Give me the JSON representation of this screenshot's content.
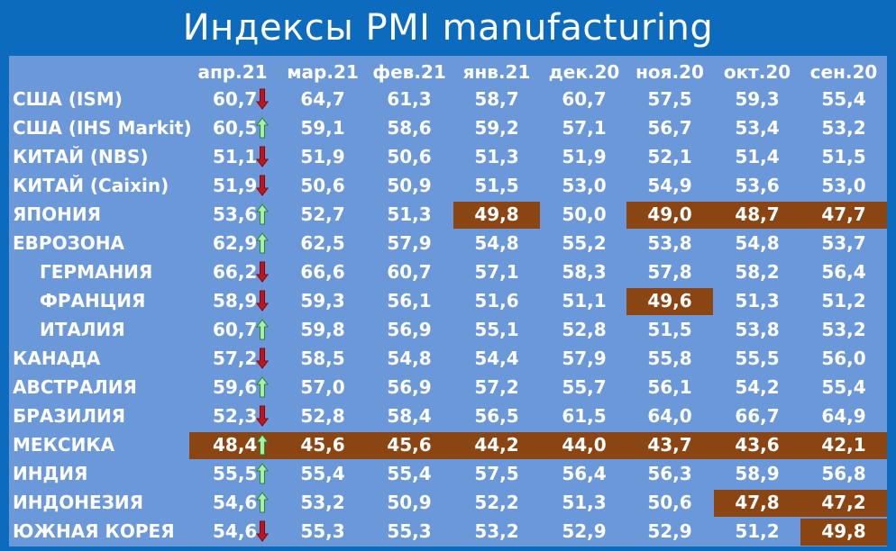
{
  "title": "Индексы PMI manufacturing",
  "chart_data": {
    "type": "table",
    "title": "Индексы PMI manufacturing",
    "columns": [
      "апр.21",
      "мар.21",
      "фев.21",
      "янв.21",
      "дек.20",
      "ноя.20",
      "окт.20",
      "сен.20"
    ],
    "rows": [
      {
        "label": "США (ISM)",
        "indent": false,
        "values": [
          "60,7",
          "64,7",
          "61,3",
          "58,7",
          "60,7",
          "57,5",
          "59,3",
          "55,4"
        ],
        "trend": "down",
        "highlight": [
          false,
          false,
          false,
          false,
          false,
          false,
          false,
          false
        ]
      },
      {
        "label": "США (IHS Markit)",
        "indent": false,
        "values": [
          "60,5",
          "59,1",
          "58,6",
          "59,2",
          "57,1",
          "56,7",
          "53,4",
          "53,2"
        ],
        "trend": "up",
        "highlight": [
          false,
          false,
          false,
          false,
          false,
          false,
          false,
          false
        ]
      },
      {
        "label": "КИТАЙ (NBS)",
        "indent": false,
        "values": [
          "51,1",
          "51,9",
          "50,6",
          "51,3",
          "51,9",
          "52,1",
          "51,4",
          "51,5"
        ],
        "trend": "down",
        "highlight": [
          false,
          false,
          false,
          false,
          false,
          false,
          false,
          false
        ]
      },
      {
        "label": "КИТАЙ (Caixin)",
        "indent": false,
        "values": [
          "51,9",
          "50,6",
          "50,9",
          "51,5",
          "53,0",
          "54,9",
          "53,6",
          "53,0"
        ],
        "trend": "down",
        "highlight": [
          false,
          false,
          false,
          false,
          false,
          false,
          false,
          false
        ]
      },
      {
        "label": "ЯПОНИЯ",
        "indent": false,
        "values": [
          "53,6",
          "52,7",
          "51,3",
          "49,8",
          "50,0",
          "49,0",
          "48,7",
          "47,7"
        ],
        "trend": "up",
        "highlight": [
          false,
          false,
          false,
          true,
          false,
          true,
          true,
          true
        ]
      },
      {
        "label": "ЕВРОЗОНА",
        "indent": false,
        "values": [
          "62,9",
          "62,5",
          "57,9",
          "54,8",
          "55,2",
          "53,8",
          "54,8",
          "53,7"
        ],
        "trend": "up",
        "highlight": [
          false,
          false,
          false,
          false,
          false,
          false,
          false,
          false
        ]
      },
      {
        "label": "ГЕРМАНИЯ",
        "indent": true,
        "values": [
          "66,2",
          "66,6",
          "60,7",
          "57,1",
          "58,3",
          "57,8",
          "58,2",
          "56,4"
        ],
        "trend": "down",
        "highlight": [
          false,
          false,
          false,
          false,
          false,
          false,
          false,
          false
        ]
      },
      {
        "label": "ФРАНЦИЯ",
        "indent": true,
        "values": [
          "58,9",
          "59,3",
          "56,1",
          "51,6",
          "51,1",
          "49,6",
          "51,3",
          "51,2"
        ],
        "trend": "down",
        "highlight": [
          false,
          false,
          false,
          false,
          false,
          true,
          false,
          false
        ]
      },
      {
        "label": "ИТАЛИЯ",
        "indent": true,
        "values": [
          "60,7",
          "59,8",
          "56,9",
          "55,1",
          "52,8",
          "51,5",
          "53,8",
          "53,2"
        ],
        "trend": "up",
        "highlight": [
          false,
          false,
          false,
          false,
          false,
          false,
          false,
          false
        ]
      },
      {
        "label": "КАНАДА",
        "indent": false,
        "values": [
          "57,2",
          "58,5",
          "54,8",
          "54,4",
          "57,9",
          "55,8",
          "55,5",
          "56,0"
        ],
        "trend": "down",
        "highlight": [
          false,
          false,
          false,
          false,
          false,
          false,
          false,
          false
        ]
      },
      {
        "label": "АВСТРАЛИЯ",
        "indent": false,
        "values": [
          "59,6",
          "57,0",
          "56,9",
          "57,2",
          "55,7",
          "56,1",
          "54,2",
          "55,4"
        ],
        "trend": "up",
        "highlight": [
          false,
          false,
          false,
          false,
          false,
          false,
          false,
          false
        ]
      },
      {
        "label": "БРАЗИЛИЯ",
        "indent": false,
        "values": [
          "52,3",
          "52,8",
          "58,4",
          "56,5",
          "61,5",
          "64,0",
          "66,7",
          "64,9"
        ],
        "trend": "down",
        "highlight": [
          false,
          false,
          false,
          false,
          false,
          false,
          false,
          false
        ]
      },
      {
        "label": "МЕКСИКА",
        "indent": false,
        "values": [
          "48,4",
          "45,6",
          "45,6",
          "44,2",
          "44,0",
          "43,7",
          "43,6",
          "42,1"
        ],
        "trend": "up",
        "highlight": [
          true,
          true,
          true,
          true,
          true,
          true,
          true,
          true
        ]
      },
      {
        "label": "ИНДИЯ",
        "indent": false,
        "values": [
          "55,5",
          "55,4",
          "55,4",
          "57,5",
          "56,4",
          "56,3",
          "58,9",
          "56,8"
        ],
        "trend": "up",
        "highlight": [
          false,
          false,
          false,
          false,
          false,
          false,
          false,
          false
        ]
      },
      {
        "label": "ИНДОНЕЗИЯ",
        "indent": false,
        "values": [
          "54,6",
          "53,2",
          "50,9",
          "52,2",
          "51,3",
          "50,6",
          "47,8",
          "47,2"
        ],
        "trend": "up",
        "highlight": [
          false,
          false,
          false,
          false,
          false,
          false,
          true,
          true
        ]
      },
      {
        "label": "ЮЖНАЯ КОРЕЯ",
        "indent": false,
        "values": [
          "54,6",
          "55,3",
          "55,3",
          "53,2",
          "52,9",
          "52,9",
          "51,2",
          "49,8"
        ],
        "trend": "down",
        "highlight": [
          false,
          false,
          false,
          false,
          false,
          false,
          false,
          true
        ]
      }
    ]
  },
  "colors": {
    "background": "#0d6bbd",
    "panel": "#6a98d8",
    "highlight": "#8b4513",
    "text": "#ffffff",
    "arrow_up_fill": "#a6f0a6",
    "arrow_up_stroke": "#2e7d32",
    "arrow_down_fill": "#c0141c",
    "arrow_down_stroke": "#7a0a10"
  },
  "icons": {
    "up": "arrow-up-icon",
    "down": "arrow-down-icon"
  }
}
